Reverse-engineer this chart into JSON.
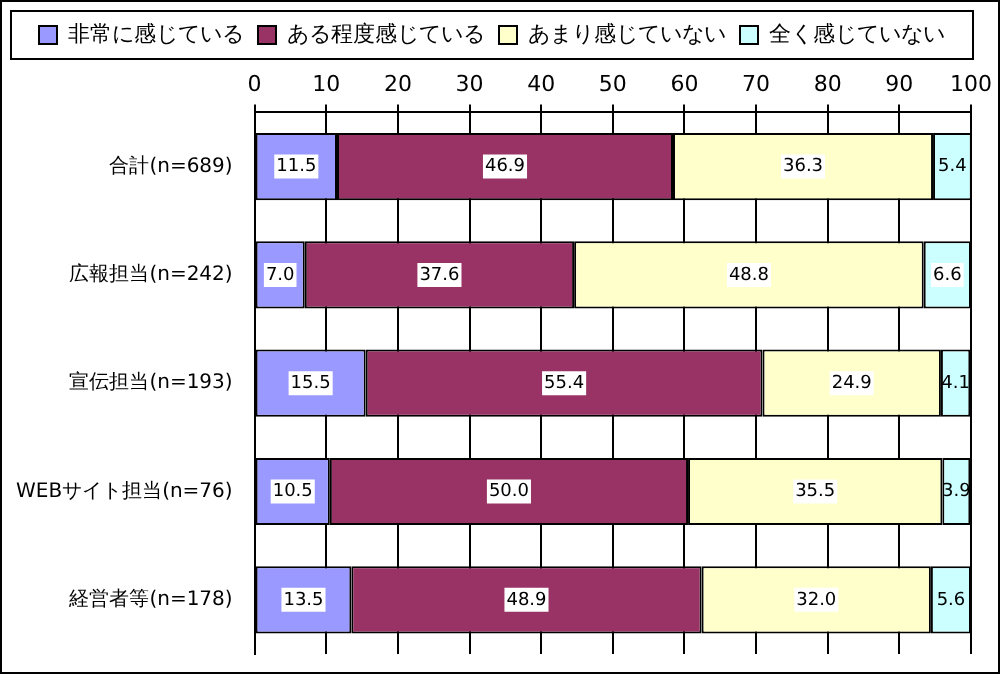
{
  "chart_data": {
    "type": "bar",
    "orientation": "horizontal",
    "stacked": true,
    "categories": [
      "合計(n=689)",
      "広報担当(n=242)",
      "宣伝担当(n=193)",
      "WEBサイト担当(n=76)",
      "経営者等(n=178)"
    ],
    "series": [
      {
        "name": "非常に感じている",
        "color": "#9999ff",
        "values": [
          11.5,
          7.0,
          15.5,
          10.5,
          13.5
        ],
        "value_labels": [
          "11.5",
          "7.0",
          "15.5",
          "10.5",
          "13.5"
        ]
      },
      {
        "name": "ある程度感じている",
        "color": "#993366",
        "values": [
          46.9,
          37.6,
          55.4,
          50.0,
          48.9
        ],
        "value_labels": [
          "46.9",
          "37.6",
          "55.4",
          "50.0",
          "48.9"
        ]
      },
      {
        "name": "あまり感じていない",
        "color": "#ffffcc",
        "values": [
          36.3,
          48.8,
          24.9,
          35.5,
          32.0
        ],
        "value_labels": [
          "36.3",
          "48.8",
          "24.9",
          "35.5",
          "32.0"
        ]
      },
      {
        "name": "全く感じていない",
        "color": "#ccffff",
        "values": [
          5.4,
          6.6,
          4.1,
          3.9,
          5.6
        ],
        "value_labels": [
          "5.4",
          "6.6",
          "4.1",
          "3.9",
          "5.6"
        ]
      }
    ],
    "xlim": [
      0,
      100
    ],
    "xticks": [
      0,
      10,
      20,
      30,
      40,
      50,
      60,
      70,
      80,
      90,
      100
    ],
    "grid": "x",
    "legend": "top"
  }
}
